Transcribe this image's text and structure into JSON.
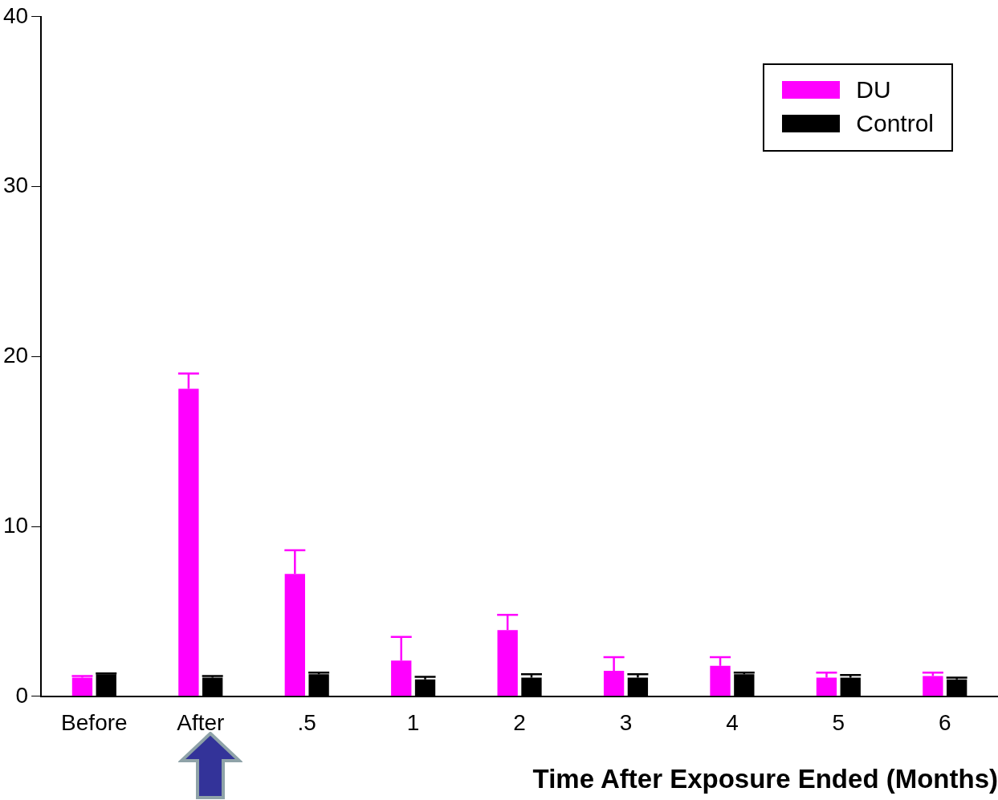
{
  "chart_data": {
    "type": "bar",
    "xlabel": "Time After Exposure Ended (Months)",
    "categories": [
      "Before",
      "After",
      ".5",
      "1",
      "2",
      "3",
      "4",
      "5",
      "6"
    ],
    "series": [
      {
        "name": "DU",
        "color": "#ff00ff",
        "values": [
          1.1,
          18.1,
          7.2,
          2.1,
          3.9,
          1.5,
          1.8,
          1.1,
          1.2
        ],
        "errors": [
          [
            1.1,
            1.2
          ],
          [
            18.1,
            19.0
          ],
          [
            7.2,
            8.6
          ],
          [
            2.1,
            3.5
          ],
          [
            3.9,
            4.8
          ],
          [
            1.5,
            2.3
          ],
          [
            1.8,
            2.3
          ],
          [
            1.1,
            1.4
          ],
          [
            1.2,
            1.4
          ]
        ]
      },
      {
        "name": "Control",
        "color": "#000000",
        "values": [
          1.3,
          1.1,
          1.3,
          1.0,
          1.1,
          1.1,
          1.3,
          1.1,
          1.0
        ],
        "errors": [
          [
            1.3,
            1.35
          ],
          [
            1.1,
            1.2
          ],
          [
            1.3,
            1.4
          ],
          [
            1.0,
            1.15
          ],
          [
            1.1,
            1.3
          ],
          [
            1.1,
            1.3
          ],
          [
            1.3,
            1.4
          ],
          [
            1.1,
            1.25
          ],
          [
            1.0,
            1.1
          ]
        ]
      }
    ],
    "ylim": [
      0,
      40
    ],
    "yticks": [
      0,
      10,
      20,
      30,
      40
    ],
    "grid": false,
    "legend": "top right"
  }
}
